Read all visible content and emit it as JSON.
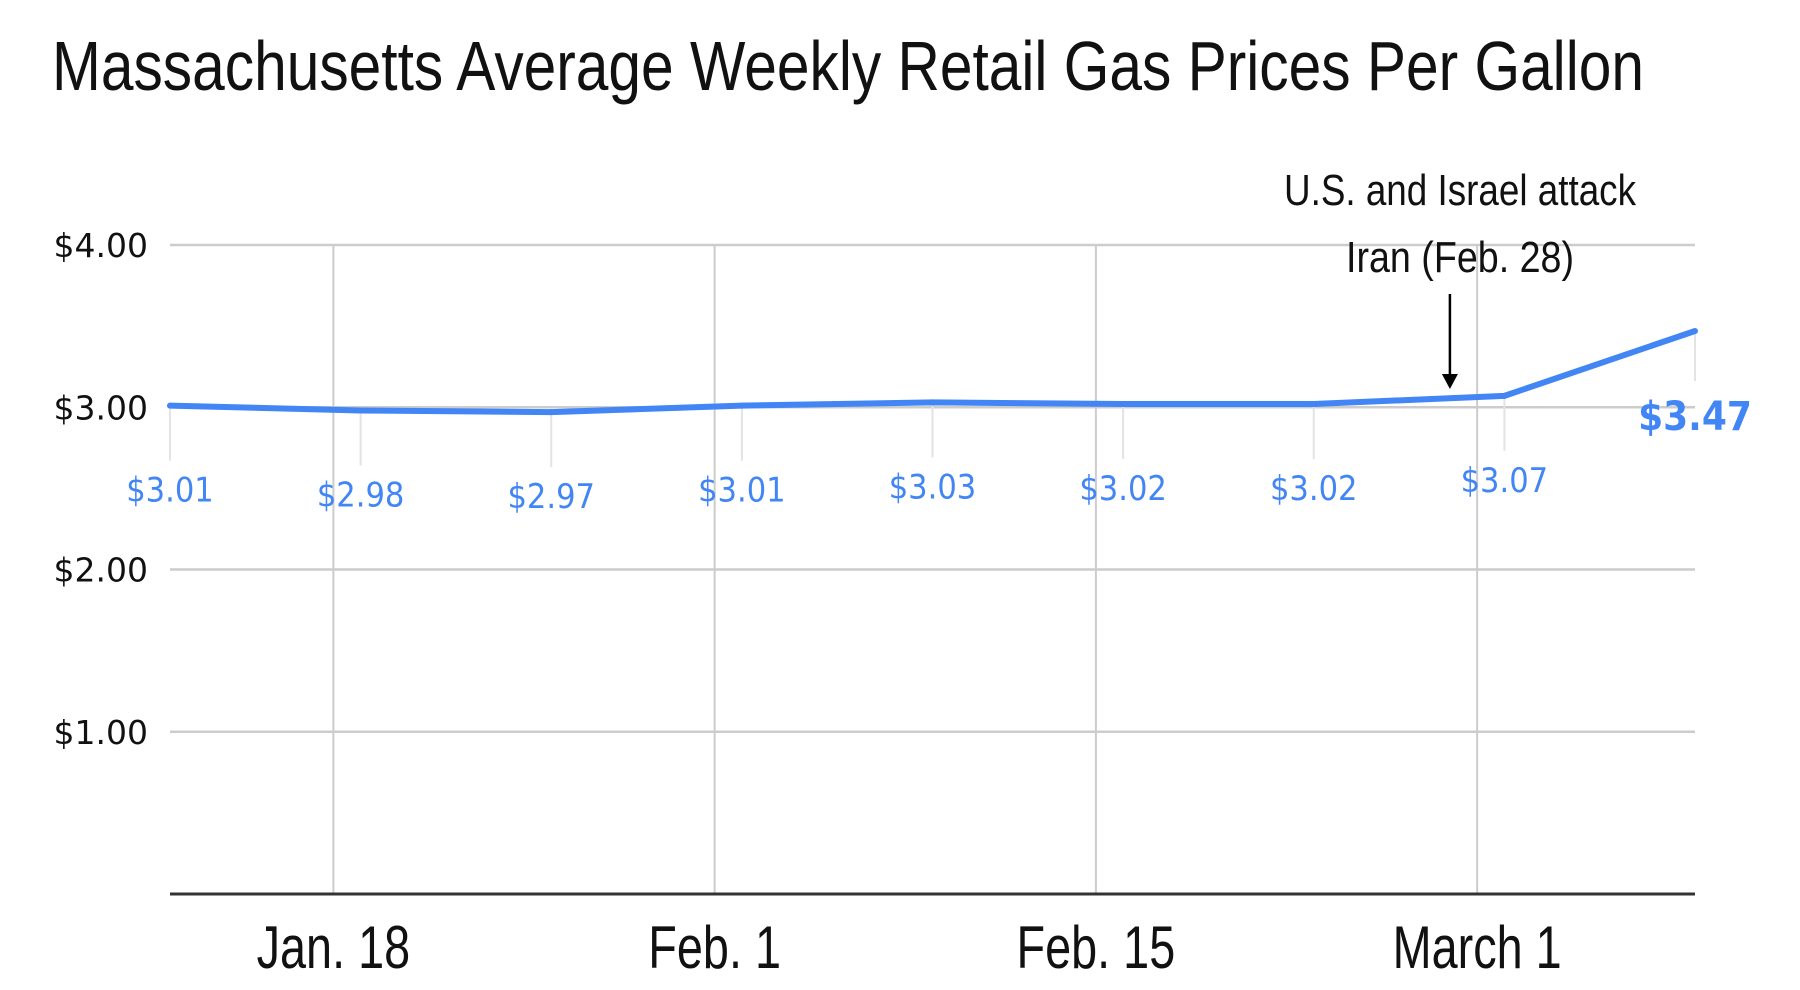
{
  "chart_data": {
    "type": "line",
    "title": "Massachusetts Average Weekly Retail Gas Prices Per Gallon",
    "xlabel": "",
    "ylabel": "",
    "x": [
      "Jan. 12",
      "Jan. 19",
      "Jan. 26",
      "Feb. 2",
      "Feb. 9",
      "Feb. 16",
      "Feb. 23",
      "March 2",
      "March 9"
    ],
    "series": [
      {
        "values": [
          3.01,
          2.98,
          2.97,
          3.01,
          3.03,
          3.02,
          3.02,
          3.07,
          3.47
        ],
        "color": "#4285f4"
      }
    ],
    "data_labels": [
      "$3.01",
      "$2.98",
      "$2.97",
      "$3.01",
      "$3.03",
      "$3.02",
      "$3.02",
      "$3.07",
      "$3.47"
    ],
    "ylim": [
      0,
      4
    ],
    "yticks": [
      {
        "value": 4,
        "label": "$4.00"
      },
      {
        "value": 3,
        "label": "$3.00"
      },
      {
        "value": 2,
        "label": "$2.00"
      },
      {
        "value": 1,
        "label": "$1.00"
      }
    ],
    "xticks": [
      {
        "date": "Jan. 18",
        "label": "Jan. 18"
      },
      {
        "date": "Feb. 1",
        "label": "Feb. 1"
      },
      {
        "date": "Feb. 15",
        "label": "Feb. 15"
      },
      {
        "date": "March 1",
        "label": "March 1"
      }
    ],
    "grid": true,
    "annotation": {
      "date": "Feb. 28",
      "lines": [
        "U.S. and Israel attack",
        "Iran (Feb. 28)"
      ]
    }
  }
}
